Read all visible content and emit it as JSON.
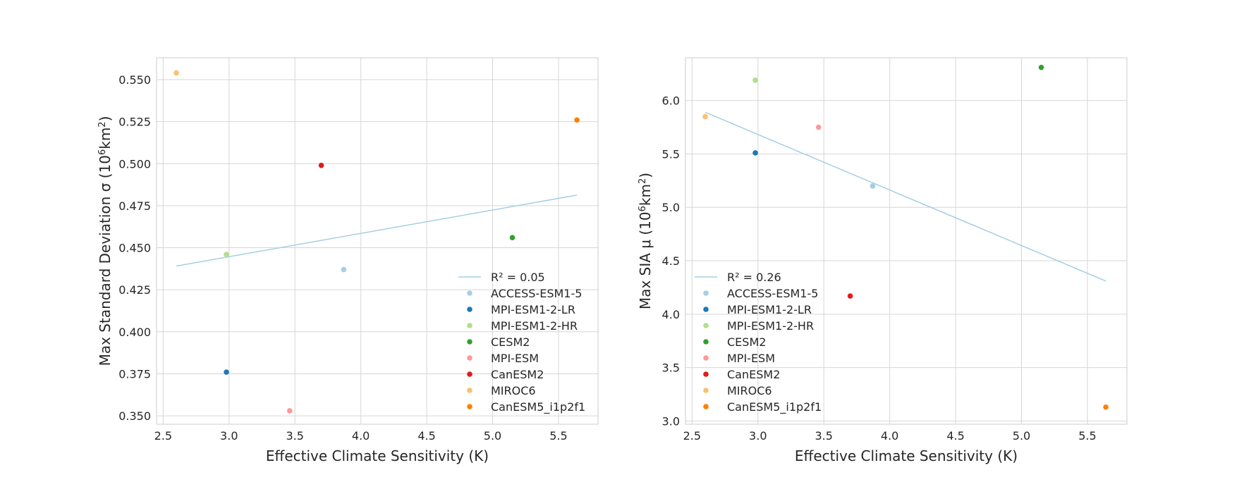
{
  "chart_data": [
    {
      "type": "scatter",
      "xlabel": "Effective Climate Sensitivity (K)",
      "ylabel_prefix": "Max Standard Deviation σ (10",
      "ylabel_sup1": "6",
      "ylabel_mid": "km",
      "ylabel_sup2": "2",
      "ylabel_suffix": ")",
      "xlim": [
        2.45,
        5.8
      ],
      "ylim": [
        0.345,
        0.563
      ],
      "xticks": [
        2.5,
        3.0,
        3.5,
        4.0,
        4.5,
        5.0,
        5.5
      ],
      "xtick_labels": [
        "2.5",
        "3.0",
        "3.5",
        "4.0",
        "4.5",
        "5.0",
        "5.5"
      ],
      "yticks": [
        0.35,
        0.375,
        0.4,
        0.425,
        0.45,
        0.475,
        0.5,
        0.525,
        0.55
      ],
      "ytick_labels": [
        "0.350",
        "0.375",
        "0.400",
        "0.425",
        "0.450",
        "0.475",
        "0.500",
        "0.525",
        "0.550"
      ],
      "grid": true,
      "legend_position": "lower-right",
      "fit_line": {
        "label": "R² = 0.05",
        "color": "#a6cee3",
        "x": [
          2.6,
          5.64
        ],
        "y": [
          0.4391,
          0.4813
        ]
      },
      "series": [
        {
          "name": "ACCESS-ESM1-5",
          "color": "#a6cee3",
          "x": [
            3.87
          ],
          "y": [
            0.437
          ]
        },
        {
          "name": "MPI-ESM1-2-LR",
          "color": "#1f78b4",
          "x": [
            2.98
          ],
          "y": [
            0.376
          ]
        },
        {
          "name": "MPI-ESM1-2-HR",
          "color": "#b2df8a",
          "x": [
            2.98
          ],
          "y": [
            0.446
          ]
        },
        {
          "name": "CESM2",
          "color": "#33a02c",
          "x": [
            5.15
          ],
          "y": [
            0.456
          ]
        },
        {
          "name": "MPI-ESM",
          "color": "#fb9a99",
          "x": [
            3.46
          ],
          "y": [
            0.353
          ]
        },
        {
          "name": "CanESM2",
          "color": "#e31a1c",
          "x": [
            3.7
          ],
          "y": [
            0.499
          ]
        },
        {
          "name": "MIROC6",
          "color": "#fdbf6f",
          "x": [
            2.6
          ],
          "y": [
            0.554
          ]
        },
        {
          "name": "CanESM5_i1p2f1",
          "color": "#ff7f00",
          "x": [
            5.64
          ],
          "y": [
            0.526
          ]
        }
      ]
    },
    {
      "type": "scatter",
      "xlabel": "Effective Climate Sensitivity (K)",
      "ylabel_prefix": "Max SIA μ (10",
      "ylabel_sup1": "6",
      "ylabel_mid": "km",
      "ylabel_sup2": "2",
      "ylabel_suffix": ")",
      "xlim": [
        2.45,
        5.8
      ],
      "ylim": [
        2.97,
        6.4
      ],
      "xticks": [
        2.5,
        3.0,
        3.5,
        4.0,
        4.5,
        5.0,
        5.5
      ],
      "xtick_labels": [
        "2.5",
        "3.0",
        "3.5",
        "4.0",
        "4.5",
        "5.0",
        "5.5"
      ],
      "yticks": [
        3.0,
        3.5,
        4.0,
        4.5,
        5.0,
        5.5,
        6.0
      ],
      "ytick_labels": [
        "3.0",
        "3.5",
        "4.0",
        "4.5",
        "5.0",
        "5.5",
        "6.0"
      ],
      "grid": true,
      "legend_position": "lower-left",
      "fit_line": {
        "label": "R² = 0.26",
        "color": "#a6cee3",
        "x": [
          2.6,
          5.64
        ],
        "y": [
          5.89,
          4.31
        ]
      },
      "series": [
        {
          "name": "ACCESS-ESM1-5",
          "color": "#a6cee3",
          "x": [
            3.87
          ],
          "y": [
            5.2
          ]
        },
        {
          "name": "MPI-ESM1-2-LR",
          "color": "#1f78b4",
          "x": [
            2.98
          ],
          "y": [
            5.51
          ]
        },
        {
          "name": "MPI-ESM1-2-HR",
          "color": "#b2df8a",
          "x": [
            2.98
          ],
          "y": [
            6.19
          ]
        },
        {
          "name": "CESM2",
          "color": "#33a02c",
          "x": [
            5.15
          ],
          "y": [
            6.31
          ]
        },
        {
          "name": "MPI-ESM",
          "color": "#fb9a99",
          "x": [
            3.46
          ],
          "y": [
            5.75
          ]
        },
        {
          "name": "CanESM2",
          "color": "#e31a1c",
          "x": [
            3.7
          ],
          "y": [
            4.17
          ]
        },
        {
          "name": "MIROC6",
          "color": "#fdbf6f",
          "x": [
            2.6
          ],
          "y": [
            5.85
          ]
        },
        {
          "name": "CanESM5_i1p2f1",
          "color": "#ff7f00",
          "x": [
            5.64
          ],
          "y": [
            3.13
          ]
        }
      ]
    }
  ]
}
